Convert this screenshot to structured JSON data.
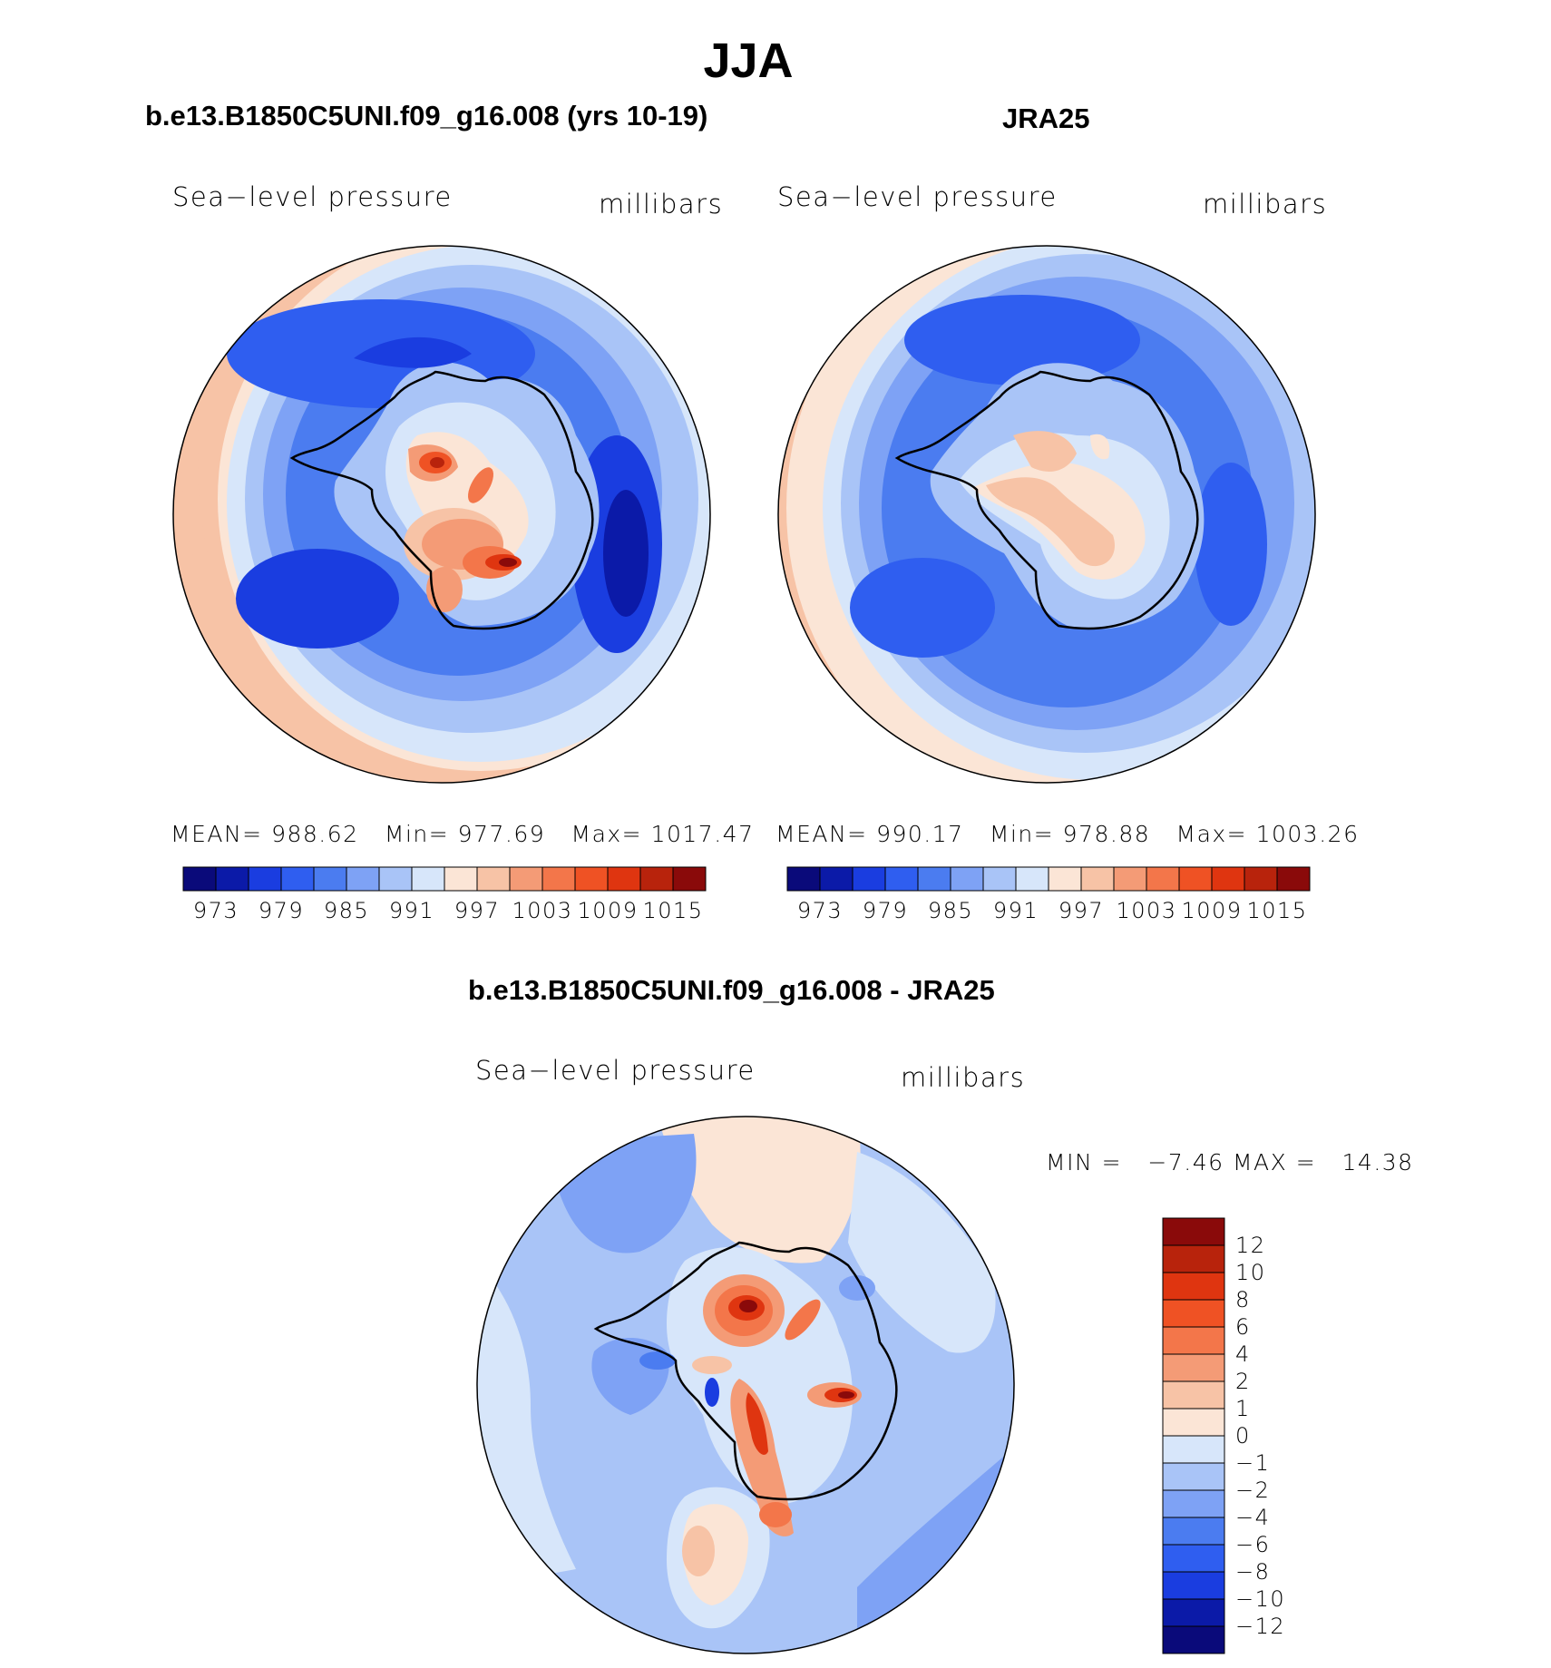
{
  "title": "JJA",
  "panels": [
    {
      "title": "b.e13.B1850C5UNI.f09_g16.008 (yrs 10-19)",
      "variable": "Sea−level pressure",
      "units": "millibars",
      "stats": {
        "mean_label": "MEAN=",
        "mean": "988.62",
        "min_label": "Min=",
        "min": "977.69",
        "max_label": "Max=",
        "max": "1017.47"
      }
    },
    {
      "title": "JRA25",
      "variable": "Sea−level pressure",
      "units": "millibars",
      "stats": {
        "mean_label": "MEAN=",
        "mean": "990.17",
        "min_label": "Min=",
        "min": "978.88",
        "max_label": "Max=",
        "max": "1003.26"
      }
    },
    {
      "title": "b.e13.B1850C5UNI.f09_g16.008 - JRA25",
      "variable": "Sea−level pressure",
      "units": "millibars",
      "stats": {
        "min_label": "MIN =",
        "min": "−7.46",
        "max_label": "MAX =",
        "max": "14.38"
      }
    }
  ],
  "horizontal_colorbar": {
    "ticks": [
      "973",
      "979",
      "985",
      "991",
      "997",
      "1003",
      "1009",
      "1015"
    ],
    "colors": [
      "#0a0a7a",
      "#0b1aa8",
      "#1a3de0",
      "#2f5ef0",
      "#4b7cf0",
      "#7ea2f5",
      "#a9c4f7",
      "#d7e6fa",
      "#fbe5d6",
      "#f7c3a6",
      "#f49b76",
      "#f3764a",
      "#ef5224",
      "#df3510",
      "#b8230c",
      "#8a0a0a"
    ]
  },
  "vertical_colorbar": {
    "ticks": [
      "12",
      "10",
      "8",
      "6",
      "4",
      "2",
      "1",
      "0",
      "−1",
      "−2",
      "−4",
      "−6",
      "−8",
      "−10",
      "−12"
    ],
    "colors": [
      "#8a0a0a",
      "#b8230c",
      "#df3510",
      "#ef5224",
      "#f3764a",
      "#f49b76",
      "#f7c3a6",
      "#fbe5d6",
      "#d7e6fa",
      "#a9c4f7",
      "#7ea2f5",
      "#4b7cf0",
      "#2f5ef0",
      "#1a3de0",
      "#0b1aa8",
      "#0a0a7a"
    ]
  }
}
